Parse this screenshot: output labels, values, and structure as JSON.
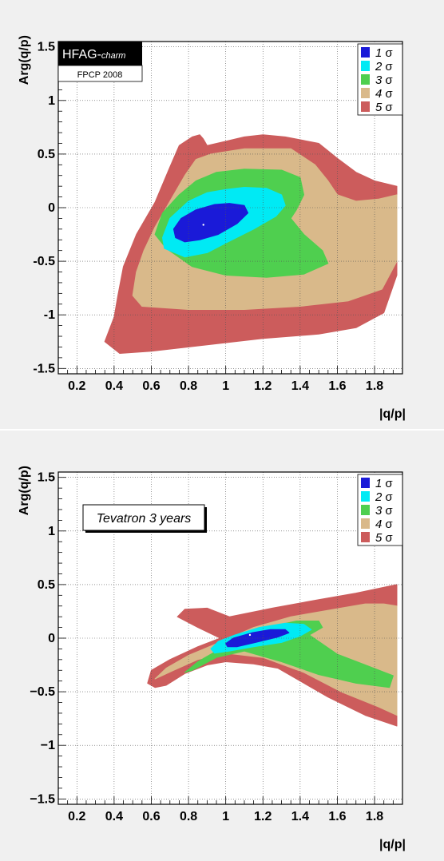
{
  "colors": {
    "sigma_1": "#1a1ad8",
    "sigma_2": "#00eaf4",
    "sigma_3": "#4fcf4f",
    "sigma_4": "#d9b98a",
    "sigma_5": "#cc5c5c",
    "panel_background": "#f0f0f0",
    "frame_background": "#ffffff"
  },
  "chart_data": [
    {
      "type": "contour",
      "xlabel": "|q/p|",
      "ylabel": "Arg(q/p)",
      "xlim": [
        0.1,
        1.95
      ],
      "ylim": [
        -1.55,
        1.55
      ],
      "xticks": [
        "0.2",
        "0.4",
        "0.6",
        "0.8",
        "1",
        "1.2",
        "1.4",
        "1.6",
        "1.8"
      ],
      "yticks": [
        "-1.5",
        "-1",
        "-0.5",
        "0",
        "0.5",
        "1",
        "1.5"
      ],
      "grid": true,
      "legend_position": "top-right",
      "legend": [
        {
          "label": "1",
          "sym": "σ",
          "color_key": "sigma_1"
        },
        {
          "label": "2",
          "sym": "σ",
          "color_key": "sigma_2"
        },
        {
          "label": "3",
          "sym": "σ",
          "color_key": "sigma_3"
        },
        {
          "label": "4",
          "sym": "σ",
          "color_key": "sigma_4"
        },
        {
          "label": "5",
          "sym": "σ",
          "color_key": "sigma_5"
        }
      ],
      "label_box": {
        "style": "hfag",
        "main": "HFAG-",
        "sub": "charm",
        "line2": "FPCP 2008"
      },
      "best_fit": {
        "x": 0.88,
        "y": -0.16
      },
      "contours": [
        {
          "level": 5,
          "color_key": "sigma_5",
          "points": [
            [
              0.43,
              -1.36
            ],
            [
              0.35,
              -1.25
            ],
            [
              0.4,
              -1.02
            ],
            [
              0.42,
              -0.82
            ],
            [
              0.45,
              -0.55
            ],
            [
              0.52,
              -0.25
            ],
            [
              0.62,
              0.05
            ],
            [
              0.7,
              0.38
            ],
            [
              0.75,
              0.58
            ],
            [
              0.82,
              0.66
            ],
            [
              0.86,
              0.68
            ],
            [
              0.88,
              0.64
            ],
            [
              0.9,
              0.58
            ],
            [
              1.0,
              0.62
            ],
            [
              1.1,
              0.66
            ],
            [
              1.2,
              0.68
            ],
            [
              1.32,
              0.66
            ],
            [
              1.5,
              0.6
            ],
            [
              1.6,
              0.46
            ],
            [
              1.7,
              0.33
            ],
            [
              1.8,
              0.25
            ],
            [
              1.92,
              0.2
            ],
            [
              1.92,
              -0.63
            ],
            [
              1.85,
              -0.98
            ],
            [
              1.7,
              -1.12
            ],
            [
              1.5,
              -1.18
            ],
            [
              1.2,
              -1.22
            ],
            [
              0.9,
              -1.28
            ],
            [
              0.6,
              -1.34
            ]
          ]
        },
        {
          "level": 4,
          "color_key": "sigma_4",
          "points": [
            [
              0.55,
              -0.92
            ],
            [
              0.5,
              -0.82
            ],
            [
              0.52,
              -0.6
            ],
            [
              0.56,
              -0.4
            ],
            [
              0.62,
              -0.18
            ],
            [
              0.7,
              0.06
            ],
            [
              0.78,
              0.3
            ],
            [
              0.84,
              0.45
            ],
            [
              0.92,
              0.5
            ],
            [
              1.1,
              0.55
            ],
            [
              1.35,
              0.55
            ],
            [
              1.48,
              0.4
            ],
            [
              1.55,
              0.25
            ],
            [
              1.6,
              0.12
            ],
            [
              1.7,
              0.06
            ],
            [
              1.82,
              0.08
            ],
            [
              1.92,
              0.12
            ],
            [
              1.92,
              -0.5
            ],
            [
              1.84,
              -0.76
            ],
            [
              1.66,
              -0.87
            ],
            [
              1.4,
              -0.92
            ],
            [
              1.1,
              -0.95
            ],
            [
              0.8,
              -0.95
            ]
          ]
        },
        {
          "level": 3,
          "color_key": "sigma_3",
          "points": [
            [
              0.68,
              -0.38
            ],
            [
              0.62,
              -0.25
            ],
            [
              0.66,
              -0.05
            ],
            [
              0.75,
              0.12
            ],
            [
              0.84,
              0.25
            ],
            [
              0.95,
              0.33
            ],
            [
              1.1,
              0.36
            ],
            [
              1.3,
              0.35
            ],
            [
              1.4,
              0.28
            ],
            [
              1.42,
              0.12
            ],
            [
              1.38,
              -0.02
            ],
            [
              1.35,
              -0.1
            ],
            [
              1.42,
              -0.25
            ],
            [
              1.52,
              -0.4
            ],
            [
              1.55,
              -0.52
            ],
            [
              1.42,
              -0.62
            ],
            [
              1.22,
              -0.65
            ],
            [
              1.0,
              -0.63
            ],
            [
              0.82,
              -0.55
            ]
          ]
        },
        {
          "level": 2,
          "color_key": "sigma_2",
          "points": [
            [
              0.67,
              -0.38
            ],
            [
              0.66,
              -0.28
            ],
            [
              0.7,
              -0.1
            ],
            [
              0.8,
              0.06
            ],
            [
              0.9,
              0.14
            ],
            [
              1.0,
              0.17
            ],
            [
              1.1,
              0.19
            ],
            [
              1.22,
              0.18
            ],
            [
              1.3,
              0.12
            ],
            [
              1.32,
              0.02
            ],
            [
              1.27,
              -0.08
            ],
            [
              1.15,
              -0.2
            ],
            [
              1.0,
              -0.33
            ],
            [
              0.9,
              -0.42
            ],
            [
              0.78,
              -0.46
            ]
          ]
        },
        {
          "level": 1,
          "color_key": "sigma_1",
          "points": [
            [
              0.73,
              -0.28
            ],
            [
              0.72,
              -0.2
            ],
            [
              0.76,
              -0.1
            ],
            [
              0.84,
              -0.02
            ],
            [
              0.94,
              0.03
            ],
            [
              1.02,
              0.04
            ],
            [
              1.1,
              0.02
            ],
            [
              1.12,
              -0.05
            ],
            [
              1.06,
              -0.15
            ],
            [
              0.96,
              -0.25
            ],
            [
              0.86,
              -0.3
            ],
            [
              0.78,
              -0.32
            ]
          ]
        }
      ]
    },
    {
      "type": "contour",
      "xlabel": "|q/p|",
      "ylabel": "Arg(q/p)",
      "xlim": [
        0.1,
        1.95
      ],
      "ylim": [
        -1.55,
        1.55
      ],
      "xticks": [
        "0.2",
        "0.4",
        "0.6",
        "0.8",
        "1",
        "1.2",
        "1.4",
        "1.6",
        "1.8"
      ],
      "yticks": [
        "−1.5",
        "−1",
        "−0.5",
        "0",
        "0.5",
        "1",
        "1.5"
      ],
      "grid": true,
      "legend_position": "top-right",
      "legend": [
        {
          "label": "1",
          "sym": "σ",
          "color_key": "sigma_1"
        },
        {
          "label": "2",
          "sym": "σ",
          "color_key": "sigma_2"
        },
        {
          "label": "3",
          "sym": "σ",
          "color_key": "sigma_3"
        },
        {
          "label": "4",
          "sym": "σ",
          "color_key": "sigma_4"
        },
        {
          "label": "5",
          "sym": "σ",
          "color_key": "sigma_5"
        }
      ],
      "label_box": {
        "style": "plain",
        "main": "Tevatron 3 years"
      },
      "best_fit": {
        "x": 1.13,
        "y": 0.03
      },
      "contours": [
        {
          "level": 5,
          "color_key": "sigma_5",
          "points": [
            [
              0.58,
              -0.42
            ],
            [
              0.6,
              -0.3
            ],
            [
              0.7,
              -0.2
            ],
            [
              0.85,
              -0.08
            ],
            [
              0.97,
              0.0
            ],
            [
              0.85,
              0.1
            ],
            [
              0.74,
              0.2
            ],
            [
              0.78,
              0.27
            ],
            [
              0.9,
              0.28
            ],
            [
              1.02,
              0.2
            ],
            [
              1.25,
              0.28
            ],
            [
              1.5,
              0.36
            ],
            [
              1.7,
              0.42
            ],
            [
              1.92,
              0.5
            ],
            [
              1.92,
              -0.82
            ],
            [
              1.75,
              -0.72
            ],
            [
              1.55,
              -0.55
            ],
            [
              1.4,
              -0.4
            ],
            [
              1.28,
              -0.28
            ],
            [
              1.15,
              -0.24
            ],
            [
              1.0,
              -0.22
            ],
            [
              0.9,
              -0.25
            ],
            [
              0.78,
              -0.33
            ],
            [
              0.68,
              -0.44
            ],
            [
              0.62,
              -0.46
            ]
          ]
        },
        {
          "level": 4,
          "color_key": "sigma_4",
          "points": [
            [
              0.62,
              -0.38
            ],
            [
              0.68,
              -0.28
            ],
            [
              0.8,
              -0.16
            ],
            [
              0.98,
              -0.03
            ],
            [
              1.15,
              0.1
            ],
            [
              1.35,
              0.2
            ],
            [
              1.55,
              0.26
            ],
            [
              1.75,
              0.32
            ],
            [
              1.85,
              0.32
            ],
            [
              1.92,
              0.3
            ],
            [
              1.92,
              -0.72
            ],
            [
              1.82,
              -0.64
            ],
            [
              1.62,
              -0.5
            ],
            [
              1.42,
              -0.32
            ],
            [
              1.2,
              -0.18
            ],
            [
              1.0,
              -0.14
            ],
            [
              0.85,
              -0.2
            ],
            [
              0.72,
              -0.3
            ]
          ]
        },
        {
          "level": 3,
          "color_key": "sigma_3",
          "points": [
            [
              0.78,
              -0.32
            ],
            [
              0.85,
              -0.22
            ],
            [
              0.95,
              -0.12
            ],
            [
              1.08,
              0.0
            ],
            [
              1.22,
              0.1
            ],
            [
              1.38,
              0.16
            ],
            [
              1.5,
              0.16
            ],
            [
              1.52,
              0.1
            ],
            [
              1.45,
              0.03
            ],
            [
              1.6,
              -0.15
            ],
            [
              1.75,
              -0.25
            ],
            [
              1.9,
              -0.35
            ],
            [
              1.88,
              -0.46
            ],
            [
              1.7,
              -0.42
            ],
            [
              1.5,
              -0.34
            ],
            [
              1.3,
              -0.22
            ],
            [
              1.1,
              -0.12
            ],
            [
              0.95,
              -0.18
            ],
            [
              0.82,
              -0.3
            ]
          ]
        },
        {
          "level": 2,
          "color_key": "sigma_2",
          "points": [
            [
              0.92,
              -0.1
            ],
            [
              0.96,
              -0.03
            ],
            [
              1.05,
              0.03
            ],
            [
              1.18,
              0.1
            ],
            [
              1.32,
              0.14
            ],
            [
              1.42,
              0.13
            ],
            [
              1.46,
              0.08
            ],
            [
              1.4,
              0.02
            ],
            [
              1.3,
              -0.04
            ],
            [
              1.15,
              -0.08
            ],
            [
              1.02,
              -0.12
            ],
            [
              0.94,
              -0.14
            ]
          ]
        },
        {
          "level": 1,
          "color_key": "sigma_1",
          "points": [
            [
              1.0,
              -0.05
            ],
            [
              1.04,
              0.0
            ],
            [
              1.14,
              0.05
            ],
            [
              1.24,
              0.08
            ],
            [
              1.32,
              0.08
            ],
            [
              1.34,
              0.05
            ],
            [
              1.28,
              0.01
            ],
            [
              1.16,
              -0.04
            ],
            [
              1.06,
              -0.08
            ],
            [
              1.01,
              -0.08
            ]
          ]
        }
      ]
    }
  ]
}
